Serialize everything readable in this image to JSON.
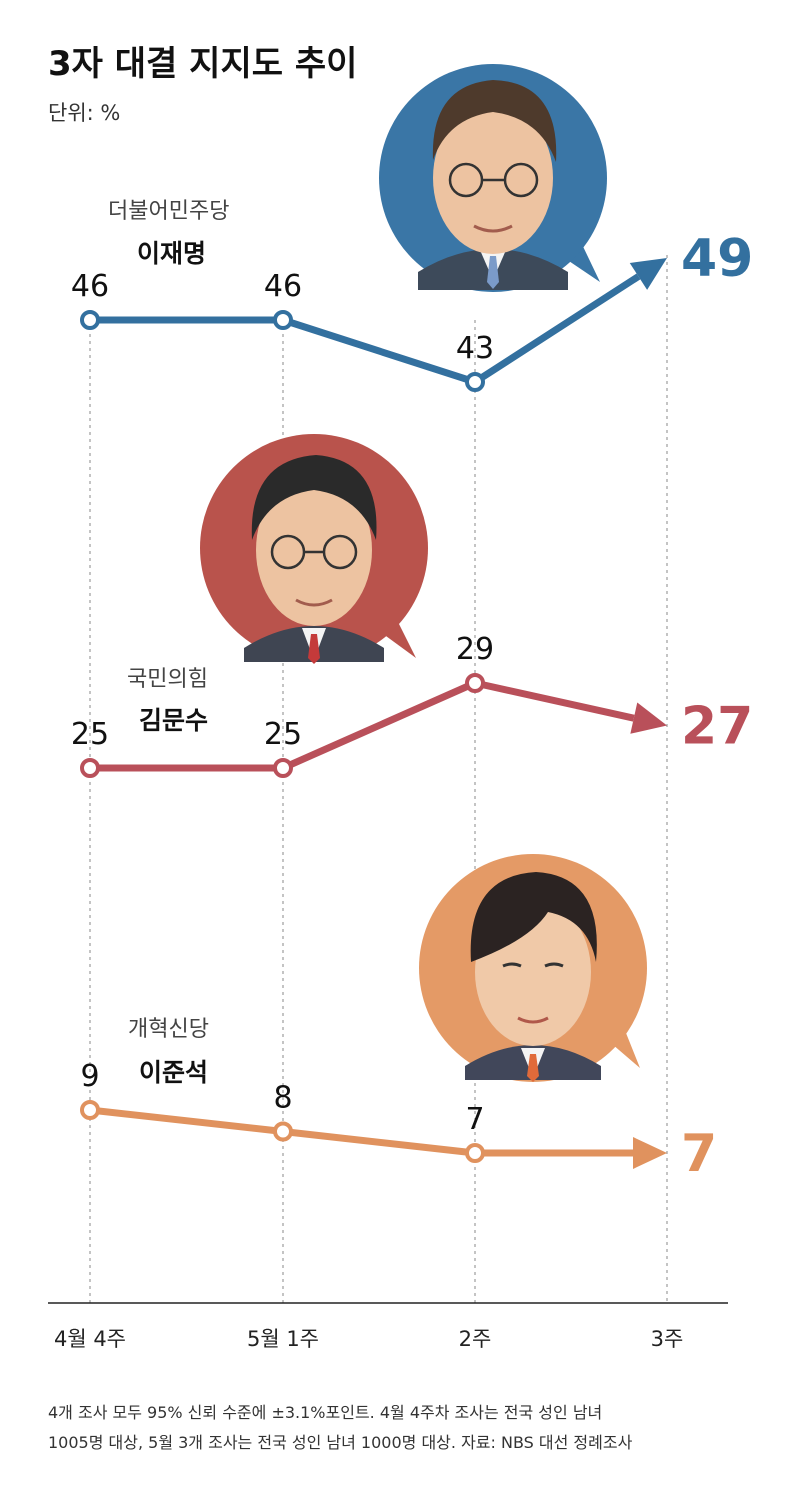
{
  "title": "3자 대결 지지도 추이",
  "unit": "단위: %",
  "chart_data": {
    "type": "line",
    "categories": [
      "4월 4주",
      "5월 1주",
      "2주",
      "3주"
    ],
    "series": [
      {
        "name": "이재명",
        "party": "더불어민주당",
        "values": [
          46,
          46,
          43,
          49
        ],
        "color": "#33709f"
      },
      {
        "name": "김문수",
        "party": "국민의힘",
        "values": [
          25,
          25,
          29,
          27
        ],
        "color": "#b9505a"
      },
      {
        "name": "이준석",
        "party": "개혁신당",
        "values": [
          9,
          8,
          7,
          7
        ],
        "color": "#e0925e"
      }
    ],
    "xlabel": "",
    "ylabel": "",
    "grid": "vertical dashed guides at each survey week"
  },
  "colors": {
    "dp_blue": "#33709f",
    "ppp_red": "#b9505a",
    "reform_orange": "#e0925e",
    "photo_blue_bg": "#3a76a6",
    "photo_red_bg": "#b9534c",
    "photo_orange_bg": "#e49a66"
  },
  "footnote": {
    "line1": "4개 조사 모두 95% 신뢰 수준에 ±3.1%포인트. 4월 4주차 조사는 전국 성인 남녀",
    "line2": "1005명 대상, 5월 3개 조사는 전국 성인 남녀 1000명 대상. 자료: NBS 대선 정례조사"
  }
}
